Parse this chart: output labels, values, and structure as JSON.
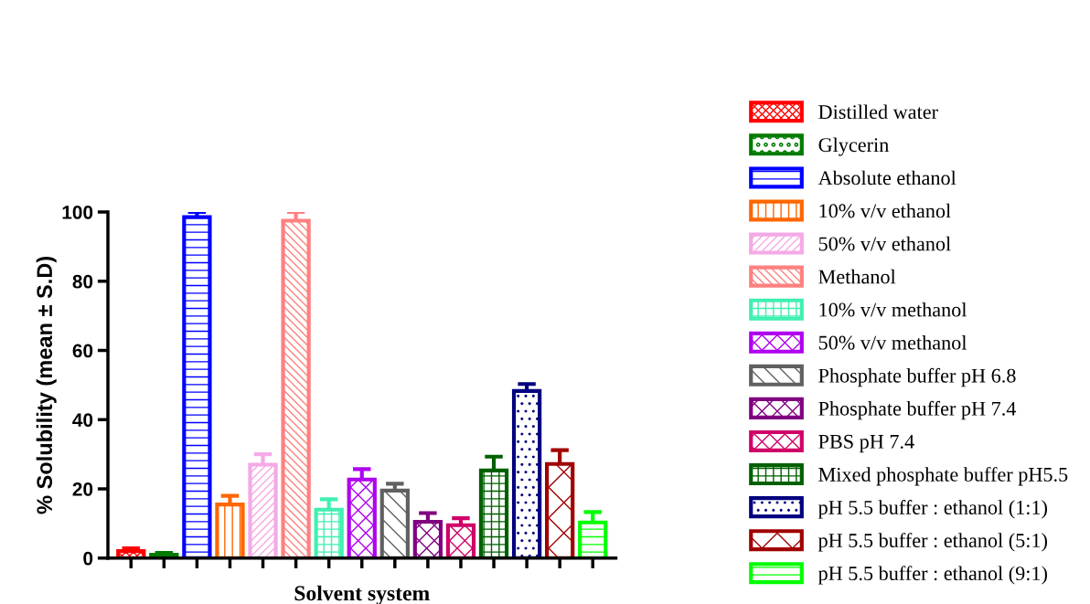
{
  "chart_data": {
    "type": "bar",
    "xlabel": "Solvent system",
    "ylabel": "% Solubility (mean ± S.D)",
    "categories": [
      null,
      null,
      null,
      null,
      null,
      null,
      null,
      null,
      null,
      null,
      null,
      null,
      null,
      null,
      null
    ],
    "ylim": [
      0,
      100
    ],
    "yticks": [
      0,
      20,
      40,
      60,
      80,
      100
    ],
    "grid": false,
    "legend": "right",
    "series": [
      {
        "name": "Distilled water",
        "color": "#ff0000",
        "values": [
          2,
          null,
          null,
          null,
          null,
          null,
          null,
          null,
          null,
          null,
          null,
          null,
          null,
          null,
          null
        ],
        "errors": [
          0.8,
          null,
          null,
          null,
          null,
          null,
          null,
          null,
          null,
          null,
          null,
          null,
          null,
          null,
          null
        ]
      },
      {
        "name": "Glycerin",
        "color": "#007a00",
        "values": [
          null,
          1,
          null,
          null,
          null,
          null,
          null,
          null,
          null,
          null,
          null,
          null,
          null,
          null,
          null
        ],
        "errors": [
          null,
          0.5,
          null,
          null,
          null,
          null,
          null,
          null,
          null,
          null,
          null,
          null,
          null,
          null,
          null
        ]
      },
      {
        "name": "Absolute ethanol",
        "color": "#0000ff",
        "values": [
          null,
          null,
          98.5,
          null,
          null,
          null,
          null,
          null,
          null,
          null,
          null,
          null,
          null,
          null,
          null
        ],
        "errors": [
          null,
          null,
          1.5,
          null,
          null,
          null,
          null,
          null,
          null,
          null,
          null,
          null,
          null,
          null,
          null
        ]
      },
      {
        "name": "10% v/v ethanol",
        "color": "#ff6600",
        "values": [
          null,
          null,
          null,
          15.5,
          null,
          null,
          null,
          null,
          null,
          null,
          null,
          null,
          null,
          null,
          null
        ],
        "errors": [
          null,
          null,
          null,
          2.5,
          null,
          null,
          null,
          null,
          null,
          null,
          null,
          null,
          null,
          null,
          null
        ]
      },
      {
        "name": "50% v/v ethanol",
        "color": "#f5a9e6",
        "values": [
          null,
          null,
          null,
          null,
          27,
          null,
          null,
          null,
          null,
          null,
          null,
          null,
          null,
          null,
          null
        ],
        "errors": [
          null,
          null,
          null,
          null,
          3,
          null,
          null,
          null,
          null,
          null,
          null,
          null,
          null,
          null,
          null
        ]
      },
      {
        "name": "Methanol",
        "color": "#ff8080",
        "values": [
          null,
          null,
          null,
          null,
          null,
          97.5,
          null,
          null,
          null,
          null,
          null,
          null,
          null,
          null,
          null
        ],
        "errors": [
          null,
          null,
          null,
          null,
          null,
          2.5,
          null,
          null,
          null,
          null,
          null,
          null,
          null,
          null,
          null
        ]
      },
      {
        "name": "10% v/v methanol",
        "color": "#40f0b0",
        "values": [
          null,
          null,
          null,
          null,
          null,
          null,
          14,
          null,
          null,
          null,
          null,
          null,
          null,
          null,
          null
        ],
        "errors": [
          null,
          null,
          null,
          null,
          null,
          null,
          3,
          null,
          null,
          null,
          null,
          null,
          null,
          null,
          null
        ]
      },
      {
        "name": "50% v/v methanol",
        "color": "#b000f0",
        "values": [
          null,
          null,
          null,
          null,
          null,
          null,
          null,
          22.7,
          null,
          null,
          null,
          null,
          null,
          null,
          null
        ],
        "errors": [
          null,
          null,
          null,
          null,
          null,
          null,
          null,
          3,
          null,
          null,
          null,
          null,
          null,
          null,
          null
        ]
      },
      {
        "name": "Phosphate buffer pH 6.8",
        "color": "#606060",
        "values": [
          null,
          null,
          null,
          null,
          null,
          null,
          null,
          null,
          19.5,
          null,
          null,
          null,
          null,
          null,
          null
        ],
        "errors": [
          null,
          null,
          null,
          null,
          null,
          null,
          null,
          null,
          2,
          null,
          null,
          null,
          null,
          null,
          null
        ]
      },
      {
        "name": "Phosphate buffer pH 7.4",
        "color": "#800080",
        "values": [
          null,
          null,
          null,
          null,
          null,
          null,
          null,
          null,
          null,
          10.5,
          null,
          null,
          null,
          null,
          null
        ],
        "errors": [
          null,
          null,
          null,
          null,
          null,
          null,
          null,
          null,
          null,
          2.5,
          null,
          null,
          null,
          null,
          null
        ]
      },
      {
        "name": "PBS pH 7.4",
        "color": "#d00068",
        "values": [
          null,
          null,
          null,
          null,
          null,
          null,
          null,
          null,
          null,
          null,
          9.5,
          null,
          null,
          null,
          null
        ],
        "errors": [
          null,
          null,
          null,
          null,
          null,
          null,
          null,
          null,
          null,
          null,
          2,
          null,
          null,
          null,
          null
        ]
      },
      {
        "name": "Mixed phosphate buffer pH5.5",
        "color": "#006000",
        "values": [
          null,
          null,
          null,
          null,
          null,
          null,
          null,
          null,
          null,
          null,
          null,
          25.3,
          null,
          null,
          null
        ],
        "errors": [
          null,
          null,
          null,
          null,
          null,
          null,
          null,
          null,
          null,
          null,
          null,
          4,
          null,
          null,
          null
        ]
      },
      {
        "name": "pH 5.5 buffer : ethanol (1:1)",
        "color": "#000080",
        "values": [
          null,
          null,
          null,
          null,
          null,
          null,
          null,
          null,
          null,
          null,
          null,
          null,
          48.3,
          null,
          null
        ],
        "errors": [
          null,
          null,
          null,
          null,
          null,
          null,
          null,
          null,
          null,
          null,
          null,
          null,
          2,
          null,
          null
        ]
      },
      {
        "name": "pH 5.5 buffer : ethanol (5:1)",
        "color": "#a00000",
        "values": [
          null,
          null,
          null,
          null,
          null,
          null,
          null,
          null,
          null,
          null,
          null,
          null,
          null,
          27.2,
          null
        ],
        "errors": [
          null,
          null,
          null,
          null,
          null,
          null,
          null,
          null,
          null,
          null,
          null,
          null,
          null,
          4,
          null
        ]
      },
      {
        "name": "pH 5.5 buffer : ethanol (9:1)",
        "color": "#00ff00",
        "values": [
          null,
          null,
          null,
          null,
          null,
          null,
          null,
          null,
          null,
          null,
          null,
          null,
          null,
          null,
          10.3
        ],
        "errors": [
          null,
          null,
          null,
          null,
          null,
          null,
          null,
          null,
          null,
          null,
          null,
          null,
          null,
          null,
          3
        ]
      }
    ]
  }
}
